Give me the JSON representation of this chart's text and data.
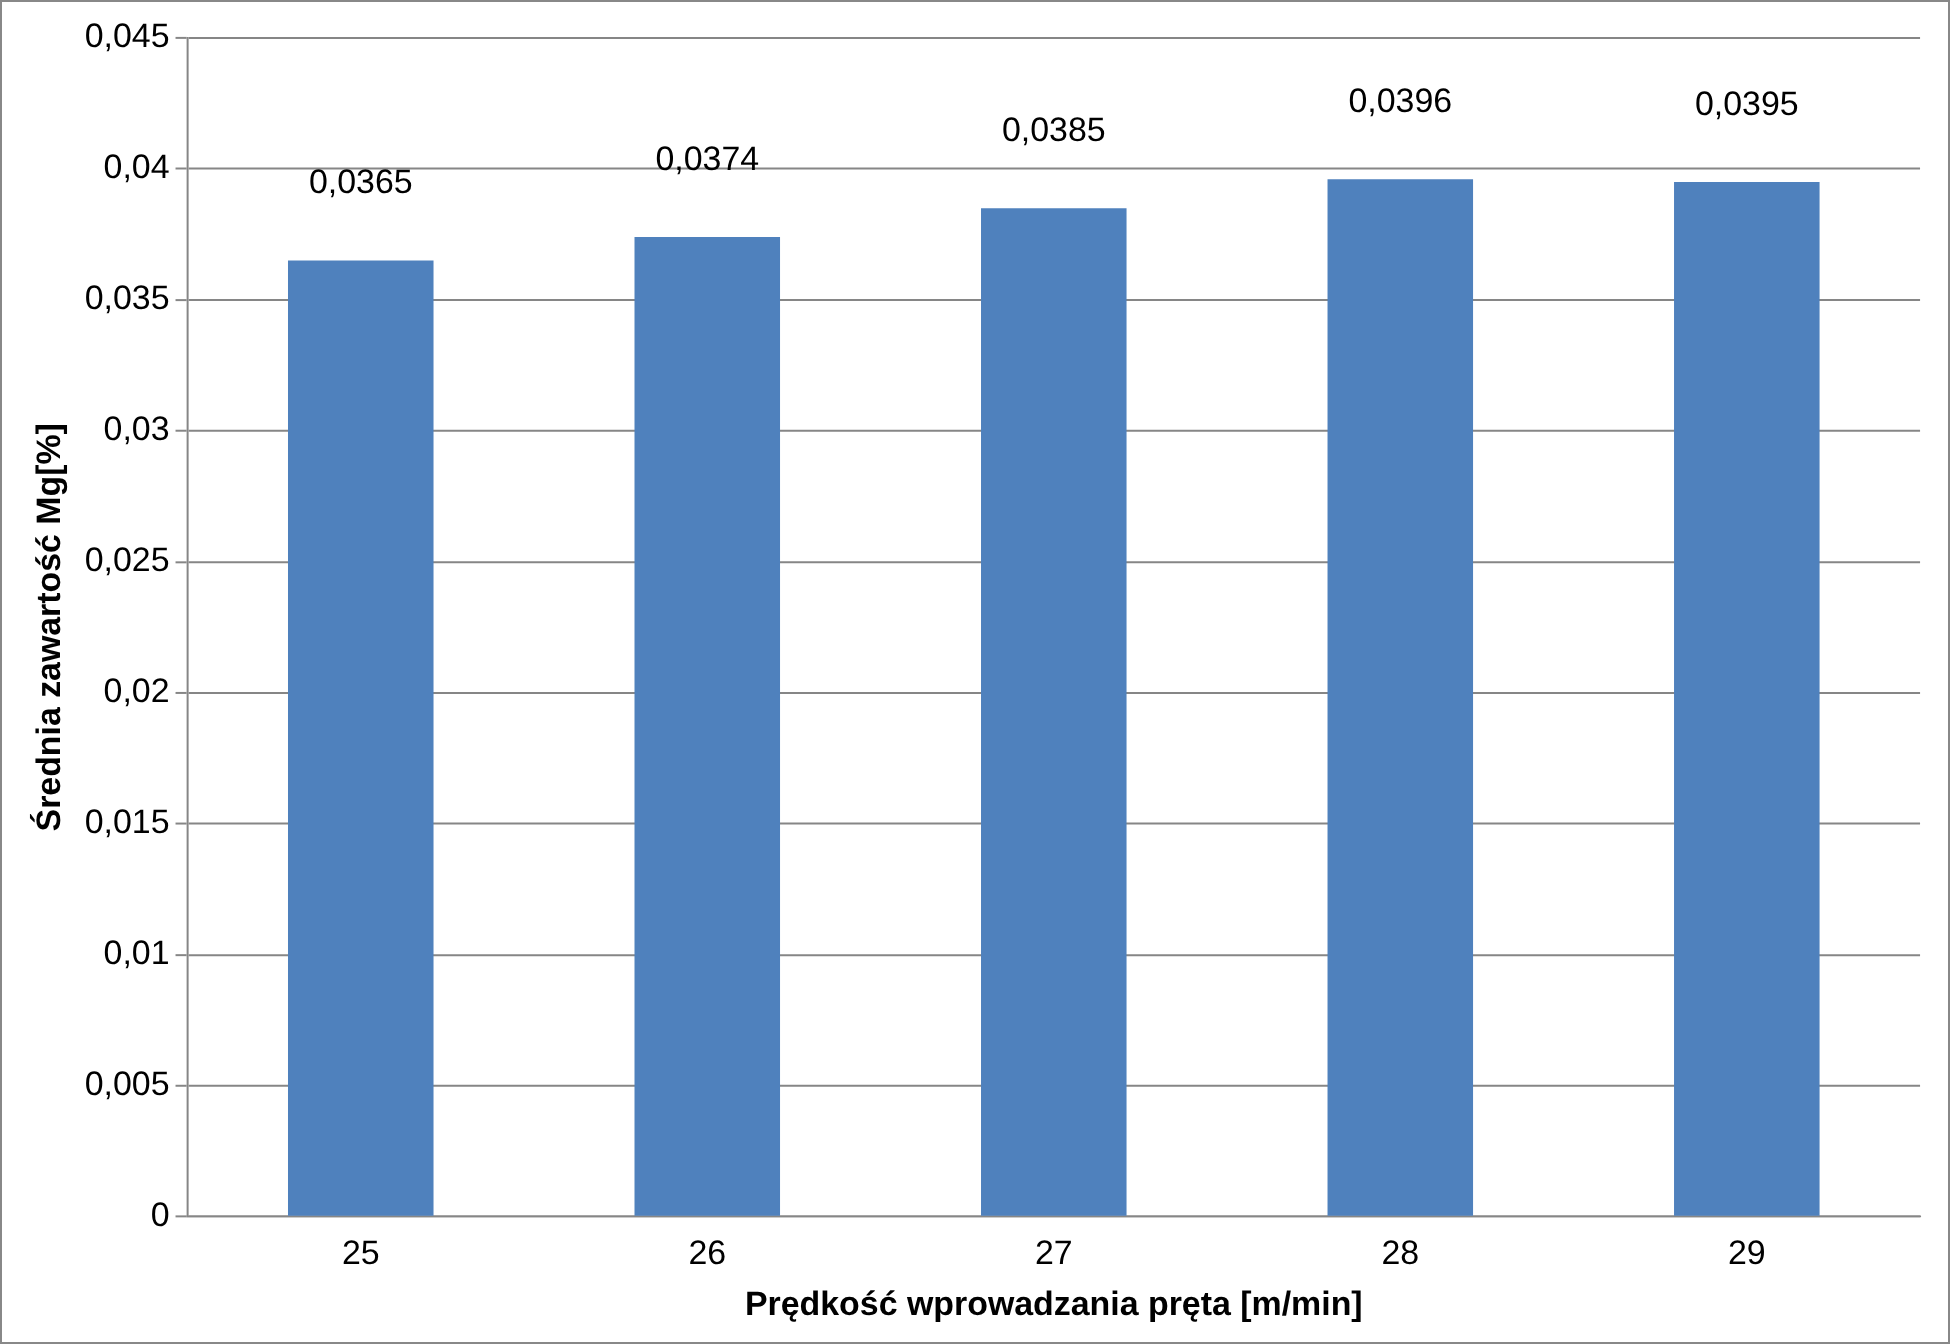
{
  "chart_data": {
    "type": "bar",
    "xlabel": "Prędkość wprowadzania pręta [m/min]",
    "ylabel": "Średnia zawartość Mg[%]",
    "categories": [
      "25",
      "26",
      "27",
      "28",
      "29"
    ],
    "values": [
      0.0365,
      0.0374,
      0.0385,
      0.0396,
      0.0395
    ],
    "value_labels": [
      "0,0365",
      "0,0374",
      "0,0385",
      "0,0396",
      "0,0395"
    ],
    "color": "#4f81bd",
    "ylim": [
      0,
      0.045
    ],
    "yticks": [
      0,
      {
        "value": 0.005,
        "label": "0,005"
      },
      {
        "value": 0.01,
        "label": "0,01"
      },
      {
        "value": 0.015,
        "label": "0,015"
      },
      {
        "value": 0.02,
        "label": "0,02"
      },
      {
        "value": 0.025,
        "label": "0,025"
      },
      {
        "value": 0.03,
        "label": "0,03"
      },
      {
        "value": 0.035,
        "label": "0,035"
      },
      {
        "value": 0.04,
        "label": "0,04"
      },
      {
        "value": 0.045,
        "label": "0,045"
      }
    ],
    "grid": "y",
    "legend": false
  }
}
